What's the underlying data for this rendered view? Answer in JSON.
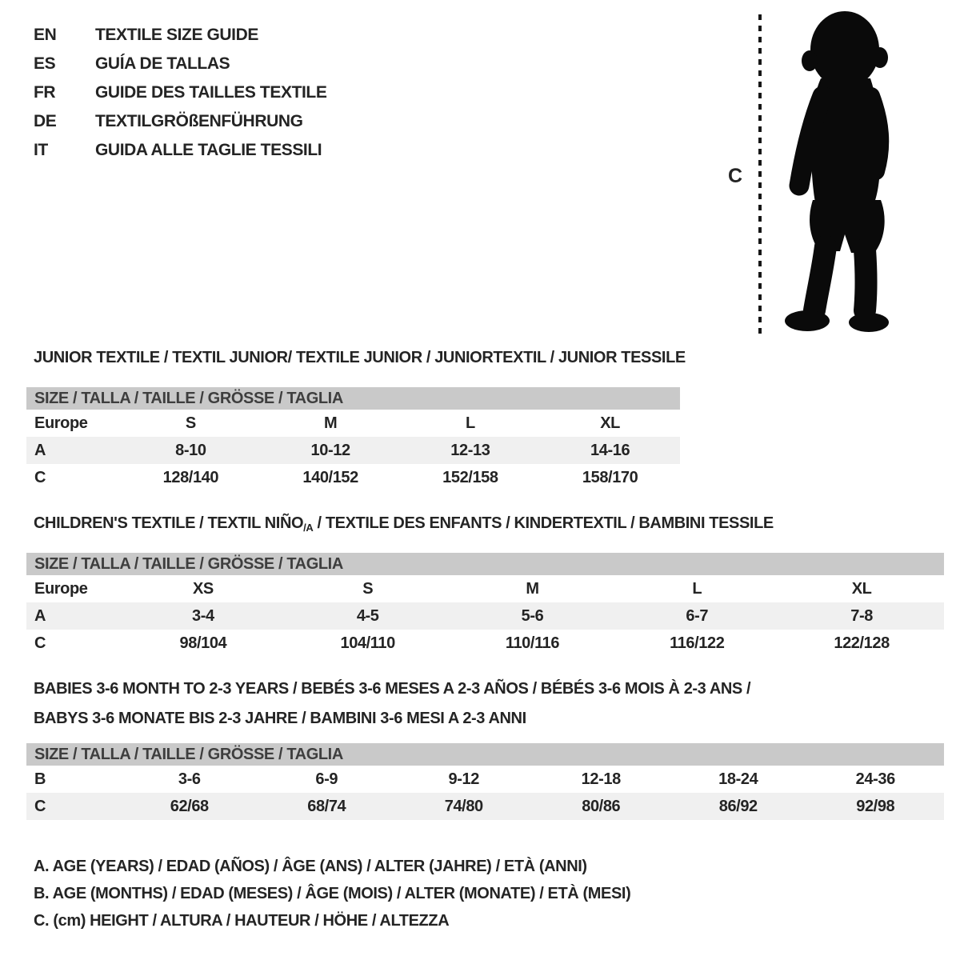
{
  "colors": {
    "header_bg": "#c9c9c9",
    "stripe_bg": "#f0f0f0",
    "text": "#242424",
    "header_text": "#3e3e3e",
    "silhouette": "#0a0a0a"
  },
  "languages": [
    {
      "code": "EN",
      "label": "TEXTILE SIZE GUIDE"
    },
    {
      "code": "ES",
      "label": "GUÍA DE TALLAS"
    },
    {
      "code": "FR",
      "label": "GUIDE DES TAILLES TEXTILE"
    },
    {
      "code": "DE",
      "label": "TEXTILGRÖßENFÜHRUNG"
    },
    {
      "code": "IT",
      "label": "GUIDA ALLE TAGLIE TESSILI"
    }
  ],
  "figure": {
    "measure_label": "C",
    "depicts": "toddler-silhouette-with-height-line"
  },
  "size_header": "SIZE / TALLA / TAILLE / GRÖSSE / TAGLIA",
  "sections": {
    "junior": {
      "title": "JUNIOR TEXTILE / TEXTIL JUNIOR/ TEXTILE JUNIOR / JUNIORTEXTIL / JUNIOR TESSILE",
      "rows": [
        {
          "label": "Europe",
          "values": [
            "S",
            "M",
            "L",
            "XL"
          ],
          "striped": false
        },
        {
          "label": "A",
          "values": [
            "8-10",
            "10-12",
            "12-13",
            "14-16"
          ],
          "striped": true
        },
        {
          "label": "C",
          "values": [
            "128/140",
            "140/152",
            "152/158",
            "158/170"
          ],
          "striped": false
        }
      ]
    },
    "children": {
      "title_before": "CHILDREN'S TEXTILE / TEXTIL NIÑO",
      "title_sub": "/A",
      "title_after": " / TEXTILE DES ENFANTS / KINDERTEXTIL / BAMBINI TESSILE",
      "rows": [
        {
          "label": "Europe",
          "values": [
            "XS",
            "S",
            "M",
            "L",
            "XL"
          ],
          "striped": false
        },
        {
          "label": "A",
          "values": [
            "3-4",
            "4-5",
            "5-6",
            "6-7",
            "7-8"
          ],
          "striped": true
        },
        {
          "label": "C",
          "values": [
            "98/104",
            "104/110",
            "110/116",
            "116/122",
            "122/128"
          ],
          "striped": false
        }
      ]
    },
    "babies": {
      "title_line1": "BABIES 3-6 MONTH TO 2-3 YEARS / BEBÉS 3-6 MESES A 2-3 AÑOS / BÉBÉS 3-6 MOIS À 2-3 ANS /",
      "title_line2": "BABYS 3-6 MONATE BIS 2-3 JAHRE / BAMBINI 3-6 MESI A 2-3 ANNI",
      "rows": [
        {
          "label": "B",
          "values": [
            "3-6",
            "6-9",
            "9-12",
            "12-18",
            "18-24",
            "24-36"
          ],
          "striped": false
        },
        {
          "label": "C",
          "values": [
            "62/68",
            "68/74",
            "74/80",
            "80/86",
            "86/92",
            "92/98"
          ],
          "striped": true
        }
      ]
    }
  },
  "legend": {
    "line_a": "A. AGE (YEARS) / EDAD (AÑOS) / ÂGE (ANS) / ALTER (JAHRE) / ETÀ (ANNI)",
    "line_b": "B. AGE (MONTHS) / EDAD (MESES) / ÂGE (MOIS) / ALTER (MONATE) / ETÀ (MESI)",
    "line_c": "C. (cm) HEIGHT / ALTURA / HAUTEUR / HÖHE / ALTEZZA"
  }
}
